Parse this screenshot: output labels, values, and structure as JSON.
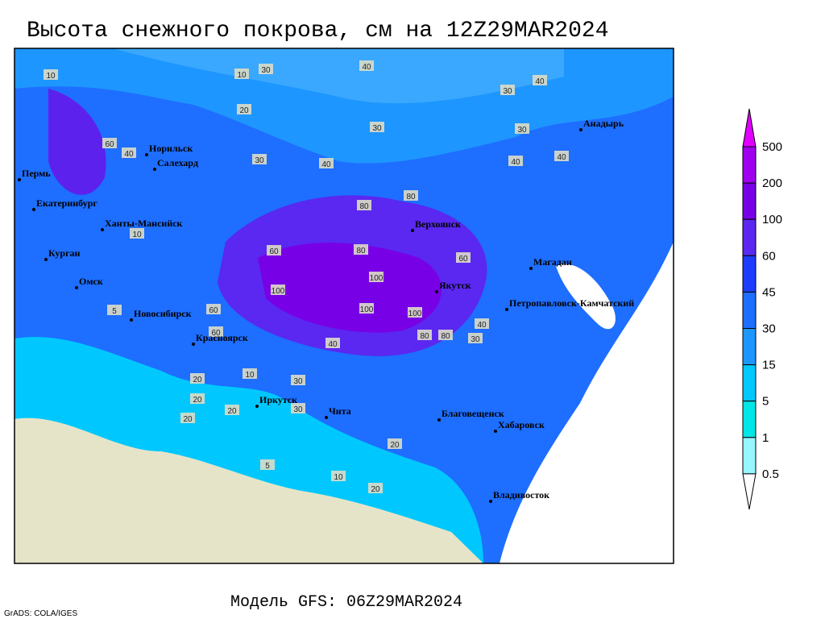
{
  "header": {
    "title": "Высота снежного покрова, см на 12Z29MAR2024"
  },
  "map": {
    "cities": [
      "Норильск",
      "Салехард",
      "Пермь",
      "Екатеринбург",
      "Ханты-Мансийск",
      "Курган",
      "Омск",
      "Новосибирск",
      "Красноярск",
      "Иркутск",
      "Чита",
      "Верхоянск",
      "Якутск",
      "Магадан",
      "Петропавловск-Камчатский",
      "Анадырь",
      "Благовещенск",
      "Хабаровск",
      "Владивосток"
    ],
    "contour_labels": [
      10,
      30,
      40,
      30,
      20,
      10,
      30,
      60,
      40,
      40,
      30,
      40,
      80,
      80,
      100,
      60,
      100,
      100,
      60,
      80,
      60,
      100,
      80,
      40,
      40,
      30,
      20,
      10,
      20,
      20,
      30,
      20,
      5,
      5,
      10,
      20,
      20,
      10,
      40,
      30,
      40,
      30,
      60,
      80
    ]
  },
  "legend": {
    "levels": [
      500,
      200,
      100,
      60,
      45,
      30,
      15,
      5,
      1,
      0.5
    ],
    "colors": [
      "#e100ff",
      "#a000f0",
      "#7800e6",
      "#5a28f0",
      "#1e3cff",
      "#1e6eff",
      "#1e96ff",
      "#00c8ff",
      "#00e6e6",
      "#96f5ff",
      "#ffffff"
    ]
  },
  "footer": {
    "model": "Модель GFS: 06Z29MAR2024",
    "credit": "GrADS: COLA/IGES"
  }
}
